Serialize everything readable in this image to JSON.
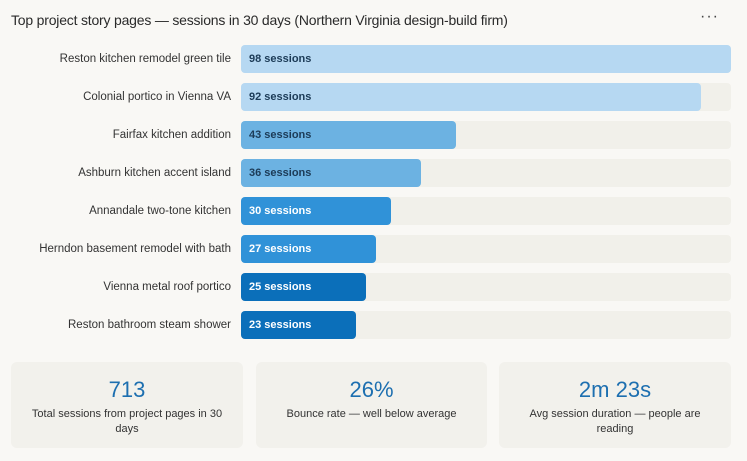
{
  "header": {
    "title": "Top project story pages — sessions in 30 days (Northern Virginia design-build firm)",
    "more_icon": "more-horizontal-icon",
    "more_glyph": "···"
  },
  "chart_data": {
    "type": "bar",
    "orientation": "horizontal",
    "title": "Top project story pages — sessions in 30 days (Northern Virginia design-build firm)",
    "categories": [
      "Reston kitchen remodel green tile",
      "Colonial portico in Vienna VA",
      "Fairfax kitchen addition",
      "Ashburn kitchen accent island",
      "Annandale two-tone kitchen",
      "Herndon basement remodel with bath",
      "Vienna metal roof portico",
      "Reston bathroom steam shower"
    ],
    "values": [
      98,
      92,
      43,
      36,
      30,
      27,
      25,
      23
    ],
    "data_labels": [
      "98 sessions",
      "92 sessions",
      "43 sessions",
      "36 sessions",
      "30 sessions",
      "27 sessions",
      "25 sessions",
      "23 sessions"
    ],
    "xlim": [
      0,
      98
    ],
    "colors": [
      "#b6d8f2",
      "#b6d8f2",
      "#6cb2e2",
      "#6cb2e2",
      "#3092d8",
      "#3092d8",
      "#0b6fba",
      "#0b6fba"
    ],
    "label_colors": [
      "#1c3b57",
      "#1c3b57",
      "#1c3b57",
      "#1c3b57",
      "#ffffff",
      "#ffffff",
      "#ffffff",
      "#ffffff"
    ],
    "track_color": "#f1f0ea",
    "grid": false
  },
  "stats": [
    {
      "value": "713",
      "caption": "Total sessions from project pages in 30 days"
    },
    {
      "value": "26%",
      "caption": "Bounce rate — well below average"
    },
    {
      "value": "2m 23s",
      "caption": "Avg session duration — people are reading"
    }
  ]
}
